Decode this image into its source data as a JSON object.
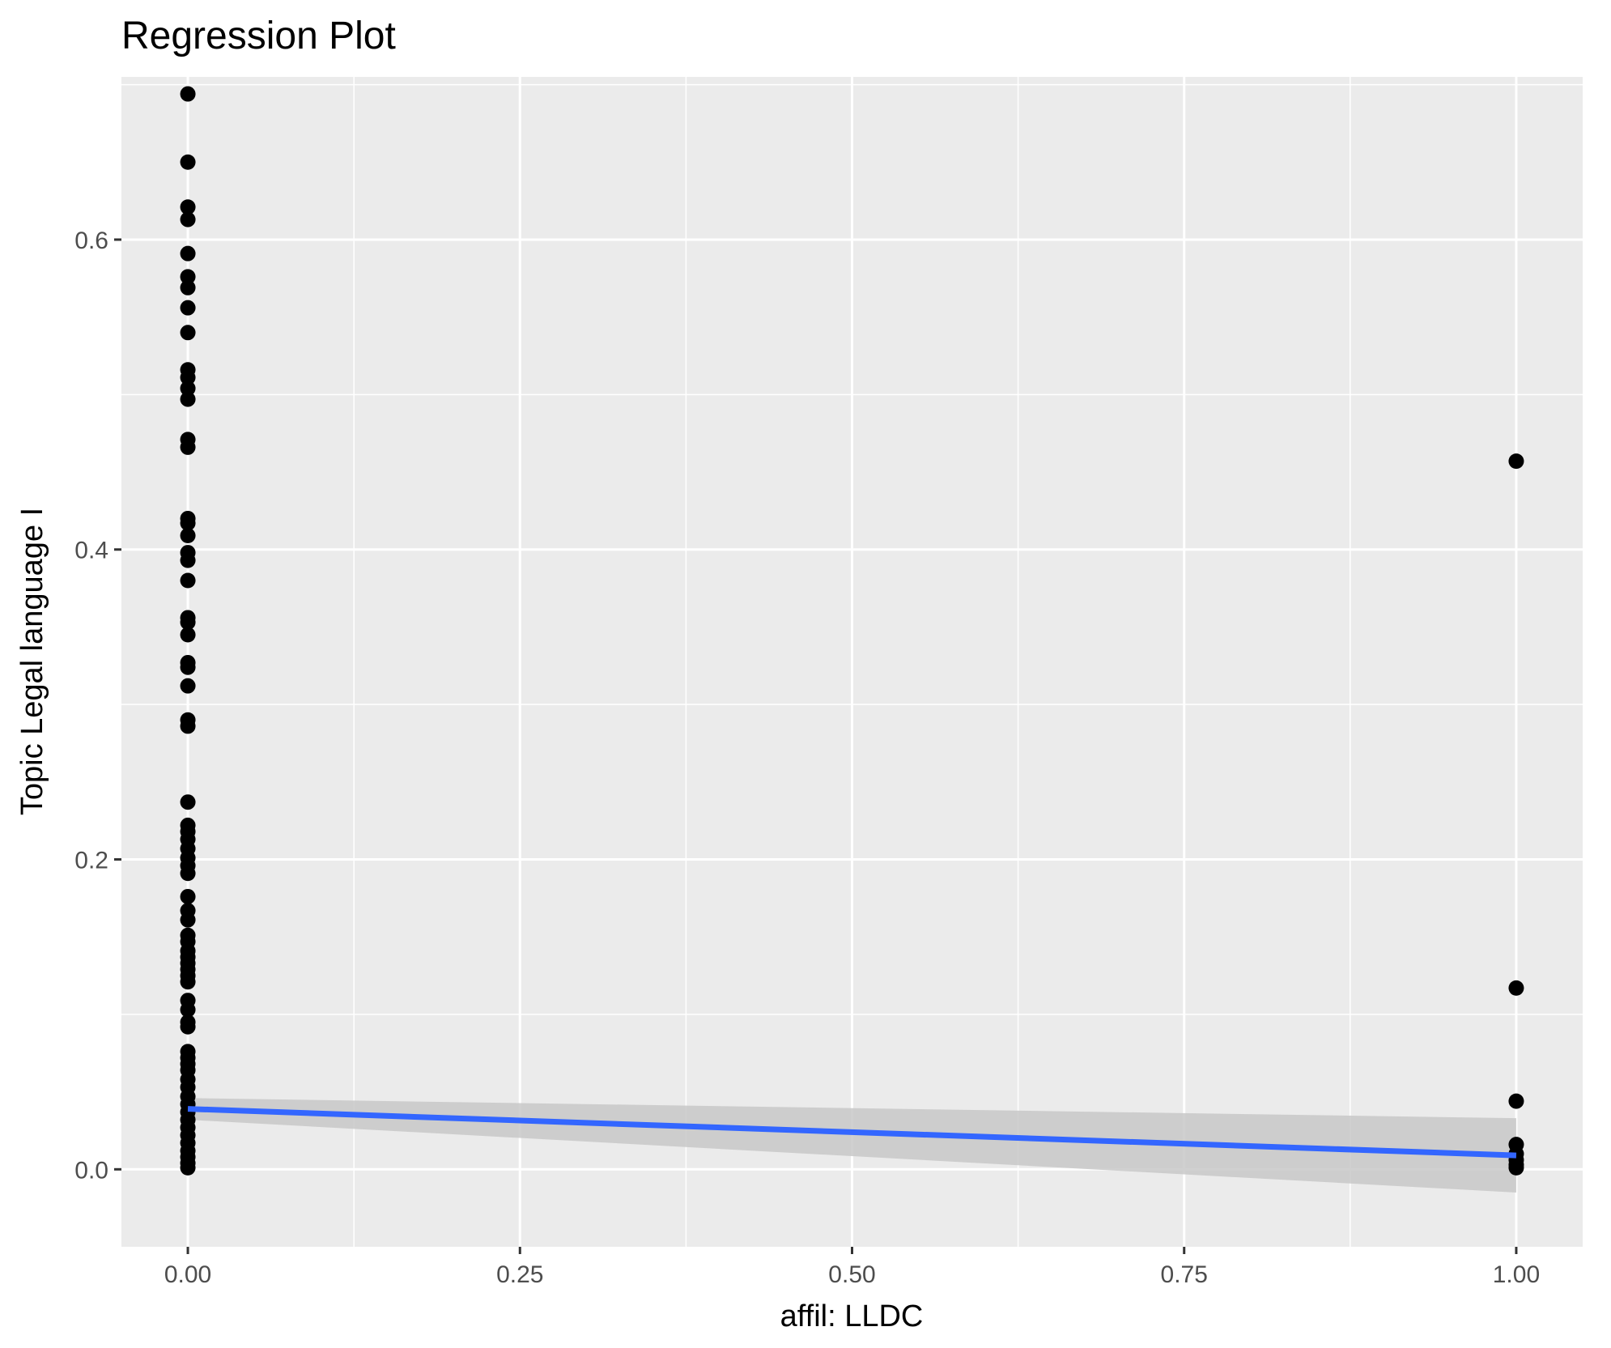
{
  "chart_data": {
    "type": "scatter",
    "title": "Regression Plot",
    "xlabel": "affil: LLDC",
    "ylabel": "Topic Legal language I",
    "xlim": [
      -0.05,
      1.05
    ],
    "ylim": [
      -0.05,
      0.705
    ],
    "x_ticks": [
      0.0,
      0.25,
      0.5,
      0.75,
      1.0
    ],
    "x_tick_labels": [
      "0.00",
      "0.25",
      "0.50",
      "0.75",
      "1.00"
    ],
    "y_ticks": [
      0.0,
      0.2,
      0.4,
      0.6
    ],
    "y_tick_labels": [
      "0.0",
      "0.2",
      "0.4",
      "0.6"
    ],
    "grid": true,
    "colors": {
      "panel_background": "#ebebeb",
      "grid": "#ffffff",
      "points": "#000000",
      "regression_line": "#3366ff",
      "confidence_band": "#c8c8c8"
    },
    "series": [
      {
        "points": [
          [
            0,
            0.694
          ],
          [
            0,
            0.65
          ],
          [
            0,
            0.621
          ],
          [
            0,
            0.613
          ],
          [
            0,
            0.591
          ],
          [
            0,
            0.576
          ],
          [
            0,
            0.569
          ],
          [
            0,
            0.556
          ],
          [
            0,
            0.54
          ],
          [
            0,
            0.516
          ],
          [
            0,
            0.511
          ],
          [
            0,
            0.504
          ],
          [
            0,
            0.497
          ],
          [
            0,
            0.471
          ],
          [
            0,
            0.466
          ],
          [
            0,
            0.42
          ],
          [
            0,
            0.417
          ],
          [
            0,
            0.409
          ],
          [
            0,
            0.398
          ],
          [
            0,
            0.393
          ],
          [
            0,
            0.38
          ],
          [
            0,
            0.356
          ],
          [
            0,
            0.353
          ],
          [
            0,
            0.345
          ],
          [
            0,
            0.327
          ],
          [
            0,
            0.324
          ],
          [
            0,
            0.312
          ],
          [
            0,
            0.29
          ],
          [
            0,
            0.286
          ],
          [
            0,
            0.237
          ],
          [
            0,
            0.222
          ],
          [
            0,
            0.218
          ],
          [
            0,
            0.213
          ],
          [
            0,
            0.207
          ],
          [
            0,
            0.201
          ],
          [
            0,
            0.196
          ],
          [
            0,
            0.191
          ],
          [
            0,
            0.176
          ],
          [
            0,
            0.167
          ],
          [
            0,
            0.161
          ],
          [
            0,
            0.151
          ],
          [
            0,
            0.147
          ],
          [
            0,
            0.141
          ],
          [
            0,
            0.137
          ],
          [
            0,
            0.133
          ],
          [
            0,
            0.129
          ],
          [
            0,
            0.125
          ],
          [
            0,
            0.121
          ],
          [
            0,
            0.109
          ],
          [
            0,
            0.103
          ],
          [
            0,
            0.095
          ],
          [
            0,
            0.092
          ],
          [
            0,
            0.076
          ],
          [
            0,
            0.072
          ],
          [
            0,
            0.068
          ],
          [
            0,
            0.064
          ],
          [
            0,
            0.058
          ],
          [
            0,
            0.053
          ],
          [
            0,
            0.047
          ],
          [
            0,
            0.042
          ],
          [
            0,
            0.037
          ],
          [
            0,
            0.032
          ],
          [
            0,
            0.027
          ],
          [
            0,
            0.022
          ],
          [
            0,
            0.017
          ],
          [
            0,
            0.012
          ],
          [
            0,
            0.008
          ],
          [
            0,
            0.004
          ],
          [
            0,
            0.001
          ],
          [
            1,
            0.457
          ],
          [
            1,
            0.117
          ],
          [
            1,
            0.044
          ],
          [
            1,
            0.016
          ],
          [
            1,
            0.01
          ],
          [
            1,
            0.006
          ],
          [
            1,
            0.003
          ],
          [
            1,
            0.001
          ]
        ]
      }
    ],
    "regression": {
      "method": "linear",
      "x": [
        0,
        1
      ],
      "y": [
        0.039,
        0.009
      ],
      "ci_lower": [
        0.032,
        -0.015
      ],
      "ci_upper": [
        0.046,
        0.033
      ]
    }
  }
}
